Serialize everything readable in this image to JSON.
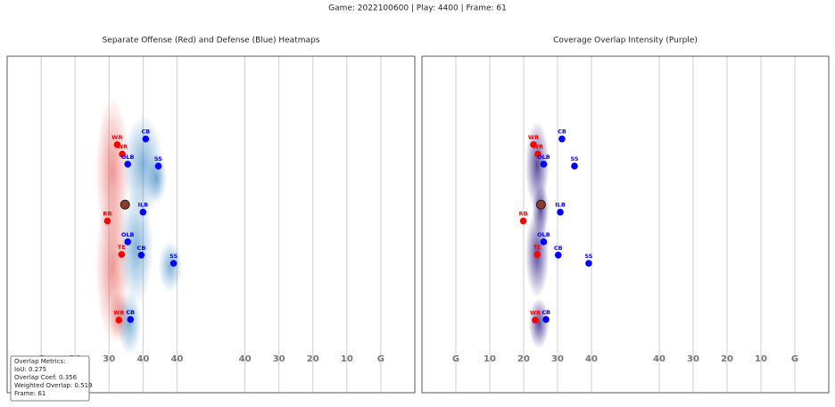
{
  "title": "Game: 2022100600 | Play: 4400 | Frame: 61",
  "metrics": [
    "Overlap Metrics:",
    "IoU: 0.275",
    "Overlap Coef: 0.356",
    "Weighted Overlap: 0.519",
    "Frame: 61"
  ],
  "chart_data": [
    {
      "type": "scatter",
      "title": "Separate Offense (Red) and Defense (Blue) Heatmaps",
      "xlim": [
        0,
        120
      ],
      "ylim": [
        0,
        53.3
      ],
      "xticks": [
        {
          "value": 10,
          "label": "G"
        },
        20,
        30,
        40,
        {
          "value": 50,
          "label": "40"
        },
        {
          "value": 70,
          "label": "40"
        },
        {
          "value": 80,
          "label": "30"
        },
        {
          "value": 90,
          "label": "20"
        },
        {
          "value": 100,
          "label": "10"
        },
        {
          "value": 110,
          "label": "G"
        }
      ],
      "grid": true,
      "series": [
        {
          "color": "#ff0000",
          "labels": [
            "WR",
            "WR",
            "RB",
            "TE",
            "WR"
          ],
          "x": [
            32.4,
            33.9,
            29.5,
            33.7,
            32.9
          ],
          "values": [
            39.3,
            37.8,
            27.2,
            21.9,
            11.5
          ]
        },
        {
          "color": "#0000ff",
          "labels": [
            "CB",
            "OLB",
            "SS",
            "ILB",
            "OLB",
            "CB",
            "SS",
            "CB"
          ],
          "x": [
            40.8,
            35.5,
            44.5,
            40.0,
            35.5,
            39.5,
            49.0,
            36.3
          ],
          "values": [
            40.2,
            36.2,
            35.9,
            28.6,
            23.9,
            21.8,
            20.5,
            11.6
          ]
        }
      ],
      "football": {
        "x": 34.7,
        "y": 29.8,
        "color": "#8b3a2b"
      },
      "heatmap_colors": [
        "#e0403a",
        "#2f7fc0"
      ]
    },
    {
      "type": "scatter",
      "title": "Coverage Overlap Intensity (Purple)",
      "xlim": [
        0,
        120
      ],
      "ylim": [
        0,
        53.3
      ],
      "xticks": [
        {
          "value": 10,
          "label": "G"
        },
        {
          "value": 20,
          "label": "10"
        },
        {
          "value": 30,
          "label": "20"
        },
        {
          "value": 40,
          "label": "30"
        },
        {
          "value": 50,
          "label": "40"
        },
        {
          "value": 70,
          "label": "40"
        },
        {
          "value": 80,
          "label": "30"
        },
        {
          "value": 90,
          "label": "20"
        },
        {
          "value": 100,
          "label": "10"
        },
        {
          "value": 110,
          "label": "G"
        }
      ],
      "grid": true,
      "series": [
        {
          "color": "#ff0000",
          "labels": [
            "WR",
            "WR",
            "RB",
            "TE",
            "WR"
          ],
          "x": [
            32.9,
            34.2,
            29.9,
            34.0,
            33.4
          ],
          "values": [
            39.3,
            37.8,
            27.2,
            21.9,
            11.5
          ]
        },
        {
          "color": "#0000ff",
          "labels": [
            "CB",
            "OLB",
            "SS",
            "ILB",
            "OLB",
            "CB",
            "SS",
            "CB"
          ],
          "x": [
            41.3,
            35.9,
            45.0,
            40.8,
            35.9,
            40.2,
            49.2,
            36.6
          ],
          "values": [
            40.2,
            36.2,
            35.9,
            28.6,
            23.9,
            21.8,
            20.5,
            11.6
          ]
        }
      ],
      "football": {
        "x": 35.1,
        "y": 29.8,
        "color": "#8b3a2b"
      },
      "heatmap_colors": [
        "#3a2a8c"
      ]
    }
  ]
}
